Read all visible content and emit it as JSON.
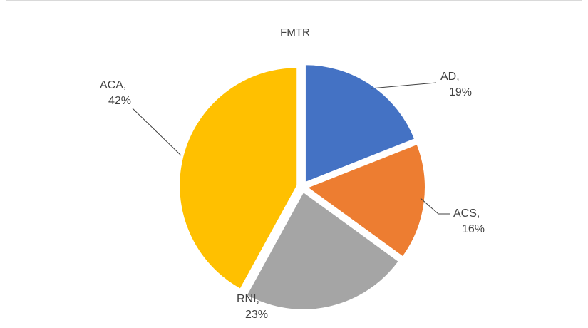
{
  "chart_data": {
    "type": "pie",
    "title": "FMTR",
    "values": [
      19,
      16,
      23,
      42
    ],
    "value_labels": [
      "AD, 19%",
      "ACS, 16%",
      "RNI, 23%",
      "ACA, 42%"
    ],
    "colors": [
      "#4472c4",
      "#ed7d31",
      "#a5a5a5",
      "#ffc000"
    ]
  }
}
